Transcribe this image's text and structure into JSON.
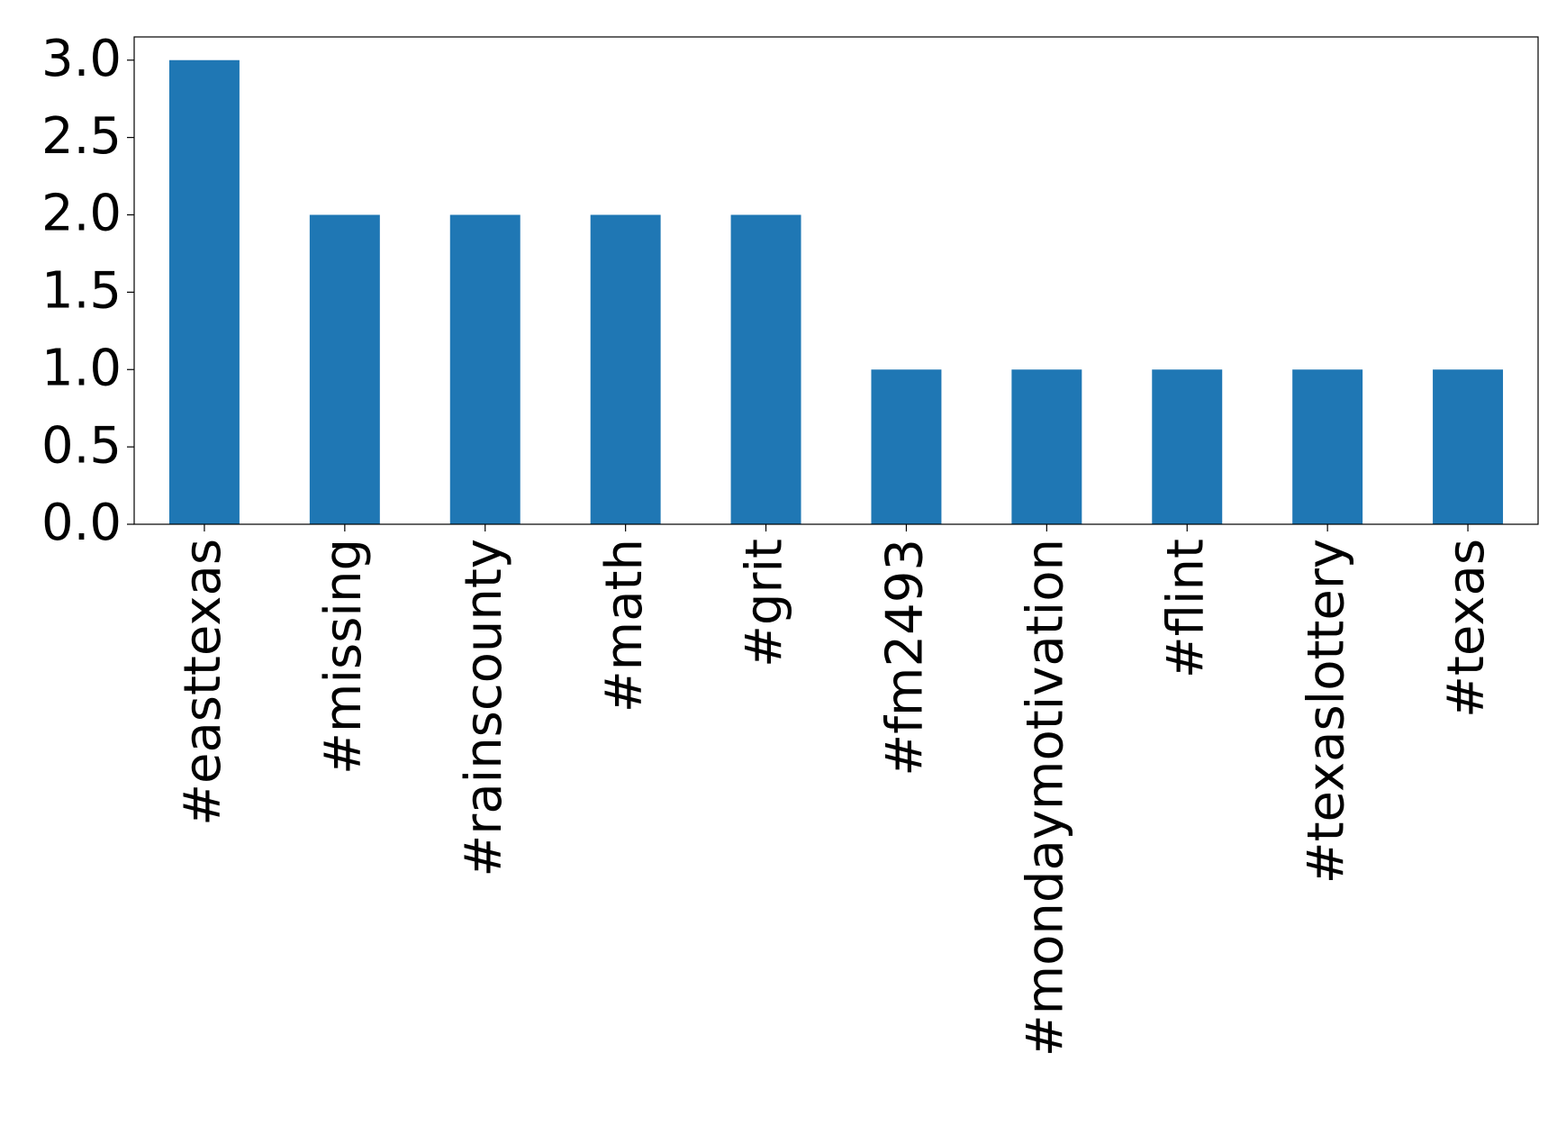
{
  "chart_data": {
    "type": "bar",
    "categories": [
      "#easttexas",
      "#missing",
      "#rainscounty",
      "#math",
      "#grit",
      "#fm2493",
      "#mondaymotivation",
      "#flint",
      "#texaslottery",
      "#texas"
    ],
    "values": [
      3,
      2,
      2,
      2,
      2,
      1,
      1,
      1,
      1,
      1
    ],
    "color": "#1f77b4",
    "ylim": [
      0,
      3.15
    ],
    "yticks": [
      {
        "value": 0,
        "label": "0.0"
      },
      {
        "value": 0.5,
        "label": "0.5"
      },
      {
        "value": 1,
        "label": "1.0"
      },
      {
        "value": 1.5,
        "label": "1.5"
      },
      {
        "value": 2,
        "label": "2.0"
      },
      {
        "value": 2.5,
        "label": "2.5"
      },
      {
        "value": 3,
        "label": "3.0"
      }
    ],
    "grid": false
  }
}
